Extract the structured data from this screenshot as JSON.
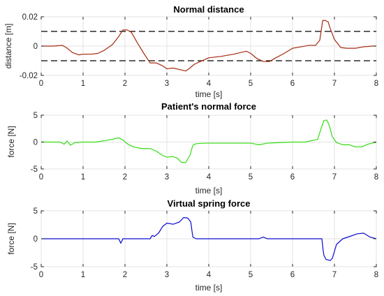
{
  "chart_data": [
    {
      "type": "line",
      "title": "Normal distance",
      "xlabel": "time [s]",
      "ylabel": "distance [m]",
      "xlim": [
        0,
        8
      ],
      "ylim": [
        -0.02,
        0.02
      ],
      "xticks": [
        0,
        1,
        2,
        3,
        4,
        5,
        6,
        7,
        8
      ],
      "xtick_labels": [
        "0",
        "1",
        "2",
        "3",
        "4",
        "5",
        "6",
        "7",
        "8"
      ],
      "yticks": [
        -0.02,
        0,
        0.02
      ],
      "ytick_labels": [
        "-0.02",
        "0",
        "0.02"
      ],
      "grid": true,
      "reference_lines": [
        {
          "y": 0.01,
          "style": "dashed",
          "color": "#000000"
        },
        {
          "y": -0.01,
          "style": "dashed",
          "color": "#000000"
        }
      ],
      "series": [
        {
          "color": "#a52a0f",
          "x": [
            0,
            0.3,
            0.5,
            0.6,
            0.75,
            0.9,
            1.0,
            1.2,
            1.35,
            1.5,
            1.7,
            1.85,
            1.95,
            2.05,
            2.15,
            2.3,
            2.45,
            2.6,
            2.75,
            2.9,
            3.0,
            3.15,
            3.3,
            3.45,
            3.55,
            3.65,
            3.8,
            4.0,
            4.3,
            4.6,
            4.9,
            5.0,
            5.15,
            5.3,
            5.45,
            5.6,
            5.8,
            6.0,
            6.2,
            6.4,
            6.55,
            6.65,
            6.72,
            6.78,
            6.85,
            6.9,
            7.0,
            7.15,
            7.3,
            7.5,
            7.7,
            7.9,
            8.0
          ],
          "y": [
            0,
            0,
            0.0005,
            -0.001,
            -0.0045,
            -0.006,
            -0.0055,
            -0.0055,
            -0.005,
            -0.003,
            0.001,
            0.0065,
            0.011,
            0.011,
            0.0095,
            0.002,
            -0.005,
            -0.0115,
            -0.0115,
            -0.0135,
            -0.0155,
            -0.015,
            -0.016,
            -0.017,
            -0.015,
            -0.0125,
            -0.0105,
            -0.008,
            -0.007,
            -0.0055,
            -0.0035,
            -0.005,
            -0.0085,
            -0.0105,
            -0.0105,
            -0.008,
            -0.005,
            -0.0015,
            -0.0005,
            0.0005,
            0.0005,
            0.004,
            0.0175,
            0.0175,
            0.0165,
            0.012,
            0.0045,
            -0.001,
            -0.0015,
            -0.0015,
            -0.0005,
            0,
            0
          ]
        }
      ]
    },
    {
      "type": "line",
      "title": "Patient's normal force",
      "xlabel": "time [s]",
      "ylabel": "force [N]",
      "xlim": [
        0,
        8
      ],
      "ylim": [
        -5,
        5
      ],
      "xticks": [
        0,
        1,
        2,
        3,
        4,
        5,
        6,
        7,
        8
      ],
      "xtick_labels": [
        "0",
        "1",
        "2",
        "3",
        "4",
        "5",
        "6",
        "7",
        "8"
      ],
      "yticks": [
        -5,
        0,
        5
      ],
      "ytick_labels": [
        "-5",
        "0",
        "5"
      ],
      "grid": true,
      "series": [
        {
          "color": "#33dd11",
          "x": [
            0,
            0.45,
            0.55,
            0.62,
            0.7,
            0.8,
            1.0,
            1.3,
            1.55,
            1.75,
            1.85,
            1.95,
            2.05,
            2.2,
            2.4,
            2.6,
            2.75,
            2.9,
            3.0,
            3.15,
            3.25,
            3.35,
            3.45,
            3.55,
            3.62,
            3.7,
            3.9,
            4.2,
            4.6,
            5.0,
            5.2,
            5.4,
            5.7,
            6.0,
            6.3,
            6.6,
            6.68,
            6.75,
            6.82,
            6.88,
            6.95,
            7.05,
            7.2,
            7.35,
            7.5,
            7.65,
            7.8,
            8.0
          ],
          "y": [
            0,
            0,
            -0.4,
            0.2,
            -0.6,
            -0.1,
            0,
            0,
            0.3,
            0.6,
            0.8,
            0.4,
            -0.3,
            -0.9,
            -1.2,
            -1.2,
            -1.7,
            -2.5,
            -2.8,
            -2.7,
            -3.0,
            -3.8,
            -3.8,
            -2.5,
            -0.6,
            -0.3,
            -0.2,
            -0.2,
            -0.2,
            -0.2,
            -0.5,
            -0.2,
            -0.1,
            0,
            0,
            0.5,
            2.5,
            4.0,
            4.1,
            3.0,
            1.0,
            -0.1,
            -0.5,
            -0.5,
            -0.9,
            -0.9,
            -0.4,
            0
          ]
        }
      ]
    },
    {
      "type": "line",
      "title": "Virtual spring force",
      "xlabel": "time [s]",
      "ylabel": "force [N]",
      "xlim": [
        0,
        8
      ],
      "ylim": [
        -5,
        5
      ],
      "xticks": [
        0,
        1,
        2,
        3,
        4,
        5,
        6,
        7,
        8
      ],
      "xtick_labels": [
        "0",
        "1",
        "2",
        "3",
        "4",
        "5",
        "6",
        "7",
        "8"
      ],
      "yticks": [
        -5,
        0,
        5
      ],
      "ytick_labels": [
        "-5",
        "0",
        "5"
      ],
      "grid": true,
      "series": [
        {
          "color": "#0a0ad2",
          "x": [
            0,
            1.85,
            1.9,
            1.95,
            2.0,
            2.6,
            2.65,
            2.7,
            2.8,
            2.9,
            3.0,
            3.15,
            3.3,
            3.4,
            3.5,
            3.57,
            3.62,
            3.7,
            5.2,
            5.3,
            5.4,
            6.7,
            6.73,
            6.75,
            6.8,
            6.9,
            6.95,
            7.05,
            7.2,
            7.4,
            7.55,
            7.7,
            7.85,
            8.0
          ],
          "y": [
            0,
            0,
            -0.8,
            0,
            0,
            0,
            0.6,
            0.4,
            1.0,
            2.2,
            2.8,
            2.6,
            3.0,
            3.8,
            3.7,
            3.0,
            0.3,
            0,
            0,
            0.3,
            0,
            0,
            -2.0,
            -3.0,
            -3.7,
            -3.9,
            -3.5,
            -1.0,
            0.0,
            0.5,
            0.9,
            1.0,
            0.3,
            0
          ]
        }
      ]
    }
  ]
}
